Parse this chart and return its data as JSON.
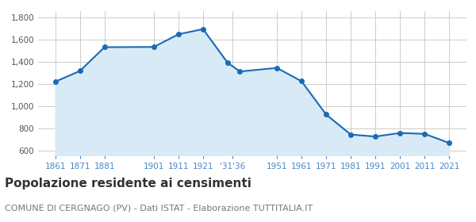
{
  "years": [
    1861,
    1871,
    1881,
    1901,
    1911,
    1921,
    1931,
    1936,
    1951,
    1961,
    1971,
    1981,
    1991,
    2001,
    2011,
    2021
  ],
  "population": [
    1224,
    1321,
    1535,
    1537,
    1651,
    1698,
    1394,
    1316,
    1348,
    1228,
    928,
    748,
    730,
    762,
    754,
    672
  ],
  "x_tick_positions": [
    1861,
    1871,
    1881,
    1901,
    1911,
    1921,
    1933,
    1951,
    1961,
    1971,
    1981,
    1991,
    2001,
    2011,
    2021
  ],
  "x_tick_labels": [
    "1861",
    "1871",
    "1881",
    "1901",
    "1911",
    "1921",
    "'31'36",
    "1951",
    "1961",
    "1971",
    "1981",
    "1991",
    "2001",
    "2011",
    "2021"
  ],
  "line_color": "#1a6bb5",
  "fill_color": "#d9eaf7",
  "marker_color": "#1a6bb5",
  "background_color": "#ffffff",
  "grid_color": "#cccccc",
  "ylabel_ticks": [
    600,
    800,
    1000,
    1200,
    1400,
    1600,
    1800
  ],
  "ylim": [
    560,
    1860
  ],
  "xlim": [
    1854,
    2028
  ],
  "title": "Popolazione residente ai censimenti",
  "subtitle": "COMUNE DI CERGNAGO (PV) - Dati ISTAT - Elaborazione TUTTITALIA.IT",
  "title_fontsize": 11,
  "subtitle_fontsize": 8,
  "tick_label_color": "#4488cc"
}
